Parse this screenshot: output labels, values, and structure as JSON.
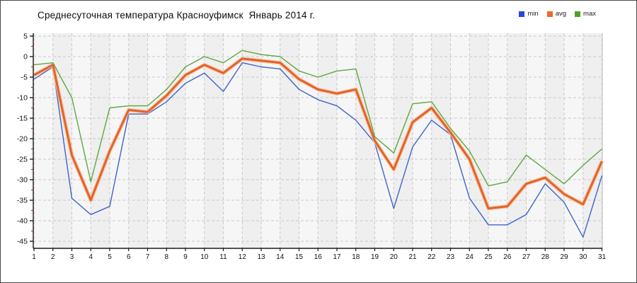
{
  "window": {
    "bg": "#ffffff",
    "border_color": "#4a4a4a"
  },
  "header": {
    "title": "Среднесуточная температура Красноуфимск  Январь 2014 г."
  },
  "legend": {
    "position": "top-right",
    "items": [
      {
        "label": "min",
        "color": "#2c46d3"
      },
      {
        "label": "avg",
        "color": "#ec672c"
      },
      {
        "label": "max",
        "color": "#4ba32a"
      }
    ]
  },
  "chart_data": {
    "type": "line",
    "title": "Среднесуточная температура Красноуфимск  Январь 2014 г.",
    "x_axis": "day of January",
    "x": [
      1,
      2,
      3,
      4,
      5,
      6,
      7,
      8,
      9,
      10,
      11,
      12,
      13,
      14,
      15,
      16,
      17,
      18,
      19,
      20,
      21,
      22,
      23,
      24,
      25,
      26,
      27,
      28,
      29,
      30,
      31
    ],
    "ylim": [
      -45,
      5
    ],
    "y_tick_step": 5,
    "y_minor_step": 2.5,
    "y_ticks": [
      5,
      0,
      -5,
      -10,
      -15,
      -20,
      -25,
      -30,
      -35,
      -40,
      -45
    ],
    "grid": true,
    "legend_position": "top-right",
    "plot_bg": "#f6f6f6",
    "band_alt_bg": "#efefef",
    "grid_color": "#c9c9c9",
    "axis_color": "#1a1a1a",
    "tick_label_color": "#111111",
    "minor_tick_color": "#cc2222",
    "series": [
      {
        "name": "min",
        "color": "#3f63c9",
        "width": 1.4,
        "values": [
          -5.5,
          -2.5,
          -34.5,
          -38.5,
          -36.5,
          -14,
          -14,
          -11,
          -6.5,
          -4,
          -8.5,
          -1.5,
          -2.5,
          -3,
          -8,
          -10.5,
          -12,
          -15.5,
          -21,
          -37,
          -22,
          -15.5,
          -19,
          -34.5,
          -41,
          -41,
          -38.5,
          -31,
          -35.5,
          -44,
          -29
        ]
      },
      {
        "name": "avg",
        "color": "#e2612b",
        "halo": "#f6bd96",
        "width": 2.8,
        "values": [
          -4.5,
          -2,
          -24,
          -35,
          -23,
          -13,
          -13.5,
          -9.5,
          -4.5,
          -2,
          -4,
          -0.5,
          -1,
          -1.5,
          -5.5,
          -8,
          -9,
          -8,
          -20.5,
          -27.5,
          -16,
          -12.5,
          -18.5,
          -25,
          -37,
          -36.5,
          -31,
          -29.5,
          -33.5,
          -36,
          -25.5
        ]
      },
      {
        "name": "max",
        "color": "#5ea63e",
        "width": 1.4,
        "values": [
          -2,
          -1.5,
          -10,
          -30.5,
          -12.5,
          -12,
          -12,
          -8,
          -2.5,
          0,
          -1.5,
          1.5,
          0.5,
          0,
          -3.5,
          -5,
          -3.5,
          -3,
          -19.5,
          -23.5,
          -11.5,
          -11,
          -17.5,
          -23,
          -31.5,
          -30.5,
          -24,
          -27.5,
          -31,
          -26.5,
          -22.5
        ]
      }
    ]
  }
}
